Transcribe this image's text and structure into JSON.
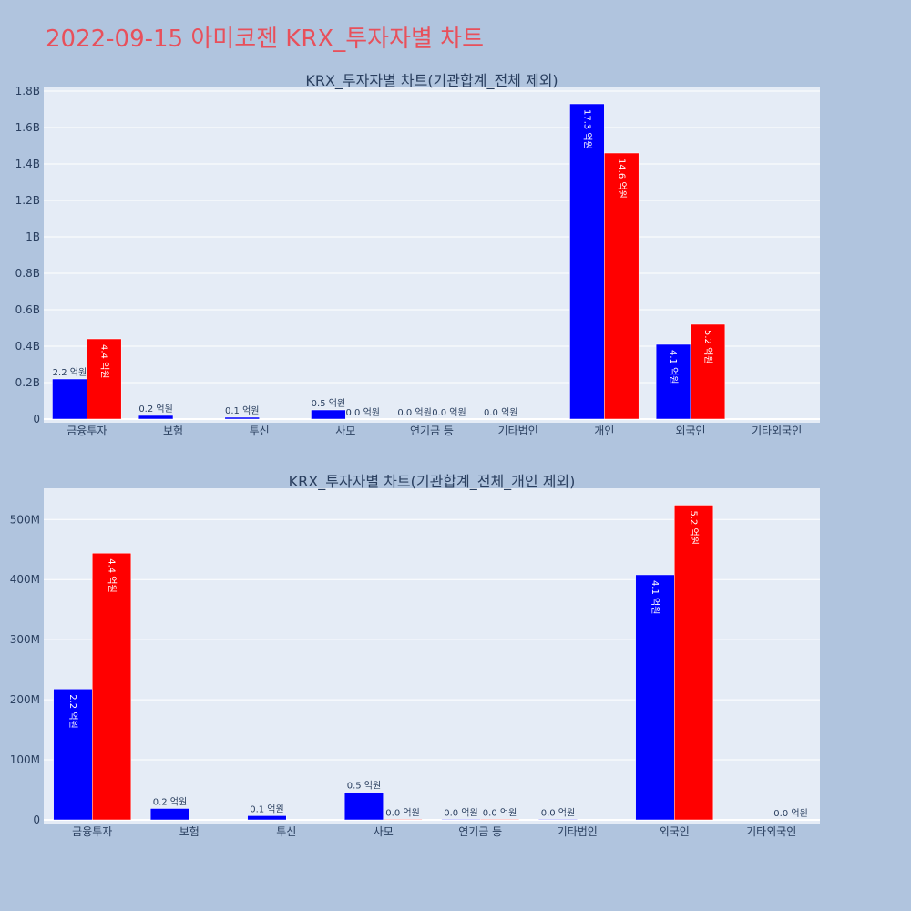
{
  "page": {
    "title": "2022-09-15 아미코젠 KRX_투자자별 차트",
    "background": "#b0c4de",
    "title_color": "#e8505b"
  },
  "chart_data": [
    {
      "type": "bar",
      "title": "KRX_투자자별 차트(기관합계_전체 제외)",
      "categories": [
        "금융투자",
        "보험",
        "투신",
        "사모",
        "연기금 등",
        "기타법인",
        "개인",
        "외국인",
        "기타외국인"
      ],
      "series": [
        {
          "color": "#0000ff",
          "values": [
            220000000,
            20000000,
            10000000,
            50000000,
            0,
            0,
            1730000000,
            410000000,
            0
          ],
          "labels": [
            "2.2 억원",
            "0.2 억원",
            "0.1 억원",
            "0.5 억원",
            "0.0 억원",
            "0.0 억원",
            "17.3 억원",
            "4.1 억원",
            ""
          ]
        },
        {
          "color": "#ff0000",
          "values": [
            440000000,
            0,
            0,
            0,
            0,
            0,
            1460000000,
            520000000,
            0
          ],
          "labels": [
            "4.4 억원",
            "",
            "",
            "0.0 억원",
            "0.0 억원",
            "",
            "14.6 억원",
            "5.2 억원",
            ""
          ]
        }
      ],
      "yticks": [
        0,
        200000000,
        400000000,
        600000000,
        800000000,
        1000000000,
        1200000000,
        1400000000,
        1600000000,
        1800000000
      ],
      "ytick_labels": [
        "0",
        "0.2B",
        "0.4B",
        "0.6B",
        "0.8B",
        "1B",
        "1.2B",
        "1.4B",
        "1.6B",
        "1.8B"
      ],
      "ylim": [
        0,
        1820000000
      ],
      "grid": true,
      "plot_bg": "#e5ecf6"
    },
    {
      "type": "bar",
      "title": "KRX_투자자별 차트(기관합계_전체_개인 제외)",
      "categories": [
        "금융투자",
        "보험",
        "투신",
        "사모",
        "연기금 등",
        "기타법인",
        "외국인",
        "기타외국인"
      ],
      "series": [
        {
          "color": "#0000ff",
          "values": [
            218000000,
            19000000,
            7000000,
            46000000,
            1000000,
            1000000,
            408000000,
            0
          ],
          "labels": [
            "2.2 억원",
            "0.2 억원",
            "0.1 억원",
            "0.5 억원",
            "0.0 억원",
            "0.0 억원",
            "4.1 억원",
            ""
          ]
        },
        {
          "color": "#ff0000",
          "values": [
            444000000,
            0,
            0,
            1000000,
            1000000,
            0,
            524000000,
            0
          ],
          "labels": [
            "4.4 억원",
            "",
            "",
            "0.0 억원",
            "0.0 억원",
            "",
            "5.2 억원",
            "0.0 억원"
          ]
        }
      ],
      "yticks": [
        0,
        100000000,
        200000000,
        300000000,
        400000000,
        500000000
      ],
      "ytick_labels": [
        "0",
        "100M",
        "200M",
        "300M",
        "400M",
        "500M"
      ],
      "ylim": [
        0,
        552000000
      ],
      "grid": true,
      "plot_bg": "#e5ecf6"
    }
  ]
}
